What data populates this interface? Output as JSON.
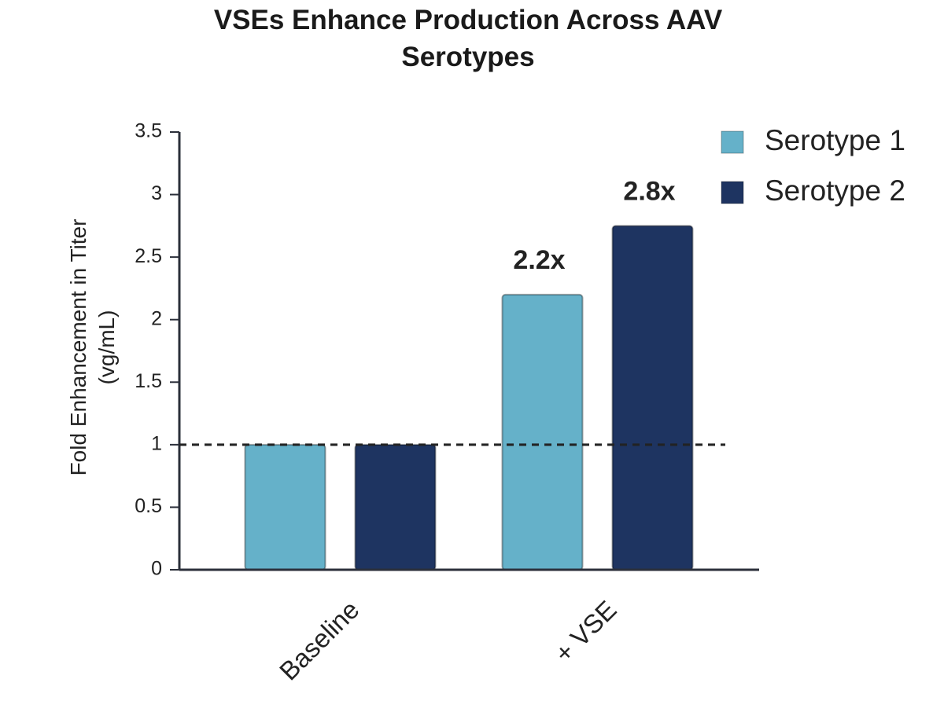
{
  "chart_data": {
    "type": "bar",
    "title": "VSEs Enhance Production Across AAV Serotypes",
    "y_label": "Fold Enhancement in Titer (vg/mL)",
    "categories": [
      "Baseline",
      "+ VSE"
    ],
    "series": [
      {
        "name": "Serotype 1",
        "color": "#65b1c9",
        "values": [
          1,
          2.2
        ],
        "value_labels": [
          null,
          "2.2x"
        ]
      },
      {
        "name": "Serotype 2",
        "color": "#1e3461",
        "values": [
          1,
          2.75
        ],
        "value_labels": [
          null,
          "2.8x"
        ]
      }
    ],
    "ylim": [
      0,
      3.5
    ],
    "yticks": [
      0,
      0.5,
      1,
      1.5,
      2,
      2.5,
      3,
      3.5
    ],
    "reference_line": 1,
    "legend": "upper right",
    "grid": false
  }
}
